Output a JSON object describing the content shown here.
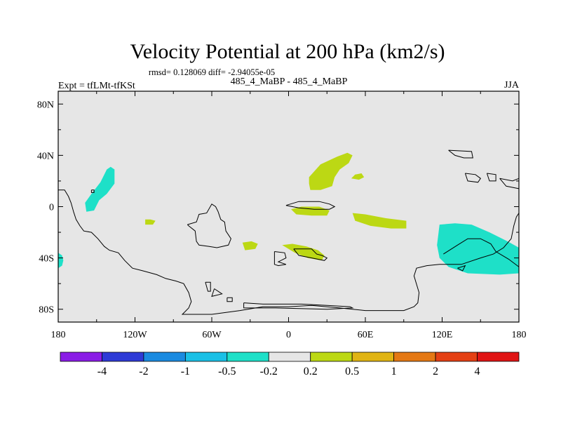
{
  "chart_data": {
    "type": "map",
    "title": "Velocity Potential at 200 hPa (km2/s)",
    "stats": "rmsd= 0.128069 diff= -2.94055e-05",
    "left_label": "Expt = tfLMt-tfKSt",
    "center_label": "485_4_MaBP - 485_4_MaBP",
    "right_label": "JJA",
    "x_ticks": [
      "180",
      "120W",
      "60W",
      "0",
      "60E",
      "120E",
      "180"
    ],
    "x_tick_values": [
      -180,
      -120,
      -60,
      0,
      60,
      120,
      180
    ],
    "y_ticks": [
      "80N",
      "40N",
      "0",
      "40S",
      "80S"
    ],
    "y_tick_values": [
      80,
      40,
      0,
      -40,
      -80
    ],
    "lon_range": [
      -180,
      180
    ],
    "lat_range": [
      -90,
      90
    ],
    "colorbar": {
      "labels": [
        "-4",
        "-2",
        "-1",
        "-0.5",
        "-0.2",
        "0.2",
        "0.5",
        "1",
        "2",
        "4"
      ],
      "colors": [
        "#8a1ce6",
        "#2e3ad6",
        "#1a8ae0",
        "#1ac0e6",
        "#1ee0c8",
        "#e6e6e6",
        "#bcd814",
        "#e0b414",
        "#e47814",
        "#e44014",
        "#e01414"
      ]
    },
    "background_color": "#e6e6e6",
    "regions": [
      {
        "name": "north-pacific-neg",
        "bin": "-0.5 to -0.2",
        "color": "#1ee0c8",
        "points": [
          [
            -142,
            29
          ],
          [
            -139,
            31
          ],
          [
            -136,
            29
          ],
          [
            -136,
            18
          ],
          [
            -142,
            10
          ],
          [
            -148,
            5
          ],
          [
            -152,
            -3
          ],
          [
            -158,
            -4
          ],
          [
            -159,
            3
          ],
          [
            -154,
            10
          ],
          [
            -147,
            19
          ]
        ]
      },
      {
        "name": "far-south-pacific-neg",
        "bin": "-0.5 to -0.2",
        "color": "#1ee0c8",
        "points": [
          [
            -180,
            -36
          ],
          [
            -177,
            -38
          ],
          [
            -176,
            -42
          ],
          [
            -177,
            -46
          ],
          [
            -180,
            -48
          ]
        ]
      },
      {
        "name": "south-west-pacific-neg",
        "bin": "-0.5 to -0.2",
        "color": "#1ee0c8",
        "points": [
          [
            118,
            -14
          ],
          [
            130,
            -13
          ],
          [
            143,
            -14
          ],
          [
            157,
            -20
          ],
          [
            171,
            -27
          ],
          [
            180,
            -32
          ],
          [
            180,
            -52
          ],
          [
            165,
            -53
          ],
          [
            140,
            -52
          ],
          [
            125,
            -47
          ],
          [
            118,
            -40
          ],
          [
            116,
            -30
          ]
        ]
      },
      {
        "name": "asia-pos",
        "bin": "0.2 to 0.5",
        "color": "#bcd814",
        "points": [
          [
            16,
            23
          ],
          [
            25,
            33
          ],
          [
            38,
            39
          ],
          [
            46,
            42
          ],
          [
            50,
            40
          ],
          [
            47,
            34
          ],
          [
            40,
            29
          ],
          [
            36,
            23
          ],
          [
            34,
            16
          ],
          [
            25,
            13
          ],
          [
            17,
            13
          ],
          [
            16,
            18
          ]
        ]
      },
      {
        "name": "east-asia-pos",
        "bin": "0.2 to 0.5",
        "color": "#bcd814",
        "points": [
          [
            49,
            22
          ],
          [
            52,
            25
          ],
          [
            57,
            26
          ],
          [
            59,
            23
          ],
          [
            55,
            21
          ]
        ]
      },
      {
        "name": "africa-pos",
        "bin": "0.2 to 0.5",
        "color": "#bcd814",
        "points": [
          [
            2,
            -2
          ],
          [
            10,
            0
          ],
          [
            24,
            0
          ],
          [
            32,
            -3
          ],
          [
            30,
            -7
          ],
          [
            18,
            -7
          ],
          [
            6,
            -6
          ]
        ]
      },
      {
        "name": "indian-ocean-pos",
        "bin": "0.2 to 0.5",
        "color": "#bcd814",
        "points": [
          [
            50,
            -5
          ],
          [
            60,
            -6
          ],
          [
            76,
            -9
          ],
          [
            92,
            -11
          ],
          [
            92,
            -17
          ],
          [
            80,
            -17
          ],
          [
            64,
            -15
          ],
          [
            52,
            -11
          ]
        ]
      },
      {
        "name": "south-atlantic-pos",
        "bin": "0.2 to 0.5",
        "color": "#bcd814",
        "points": [
          [
            -36,
            -28
          ],
          [
            -29,
            -27
          ],
          [
            -24,
            -29
          ],
          [
            -26,
            -33
          ],
          [
            -34,
            -34
          ]
        ]
      },
      {
        "name": "south-africa-pos",
        "bin": "0.2 to 0.5",
        "color": "#bcd814",
        "points": [
          [
            -5,
            -30
          ],
          [
            3,
            -29
          ],
          [
            14,
            -31
          ],
          [
            23,
            -34
          ],
          [
            28,
            -38
          ],
          [
            26,
            -42
          ],
          [
            15,
            -40
          ],
          [
            5,
            -36
          ]
        ]
      },
      {
        "name": "south-pacific-pos",
        "bin": "0.2 to 0.5",
        "color": "#bcd814",
        "points": [
          [
            -112,
            -10
          ],
          [
            -108,
            -10
          ],
          [
            -104,
            -11
          ],
          [
            -106,
            -14
          ],
          [
            -112,
            -14
          ]
        ]
      }
    ],
    "outlines": [
      [
        [
          -180,
          13
        ],
        [
          -175,
          13
        ],
        [
          -172,
          8
        ],
        [
          -170,
          3
        ],
        [
          -168,
          -4
        ],
        [
          -166,
          -10
        ],
        [
          -163,
          -15
        ],
        [
          -160,
          -19
        ],
        [
          -154,
          -20
        ],
        [
          -149,
          -25
        ],
        [
          -144,
          -31
        ],
        [
          -140,
          -34
        ],
        [
          -133,
          -36
        ],
        [
          -128,
          -42
        ],
        [
          -122,
          -48
        ],
        [
          -114,
          -50
        ],
        [
          -103,
          -53
        ],
        [
          -96,
          -56
        ],
        [
          -88,
          -58
        ],
        [
          -82,
          -60
        ],
        [
          -78,
          -67
        ],
        [
          -76,
          -74
        ],
        [
          -78,
          -79
        ],
        [
          -81,
          -82
        ],
        [
          -83,
          -84
        ],
        [
          -60,
          -84
        ],
        [
          -38,
          -81
        ],
        [
          -20,
          -78
        ],
        [
          0,
          -78
        ],
        [
          18,
          -77
        ],
        [
          40,
          -79
        ],
        [
          60,
          -81
        ],
        [
          90,
          -81
        ],
        [
          98,
          -78
        ],
        [
          101,
          -75
        ],
        [
          102,
          -67
        ],
        [
          98,
          -54
        ],
        [
          100,
          -48
        ],
        [
          108,
          -46
        ],
        [
          118,
          -45
        ],
        [
          135,
          -45
        ],
        [
          150,
          -40
        ],
        [
          160,
          -37
        ],
        [
          168,
          -32
        ],
        [
          174,
          -25
        ],
        [
          176,
          -15
        ],
        [
          178,
          -8
        ],
        [
          180,
          -5
        ]
      ],
      [
        [
          -154,
          13
        ],
        [
          -152,
          13
        ],
        [
          -152,
          11
        ],
        [
          -154,
          11
        ],
        [
          -154,
          13
        ]
      ],
      [
        [
          -79,
          -14
        ],
        [
          -72,
          -12
        ],
        [
          -70,
          -6
        ],
        [
          -64,
          -5
        ],
        [
          -60,
          2
        ],
        [
          -57,
          0
        ],
        [
          -55,
          -4
        ],
        [
          -53,
          -10
        ],
        [
          -50,
          -12
        ],
        [
          -49,
          -19
        ],
        [
          -45,
          -25
        ],
        [
          -47,
          -30
        ],
        [
          -56,
          -32
        ],
        [
          -62,
          -31
        ],
        [
          -70,
          -30
        ],
        [
          -72,
          -27
        ],
        [
          -73,
          -19
        ],
        [
          -78,
          -15
        ],
        [
          -79,
          -14
        ]
      ],
      [
        [
          -2,
          1
        ],
        [
          8,
          4
        ],
        [
          24,
          4
        ],
        [
          32,
          2
        ],
        [
          36,
          0
        ],
        [
          32,
          -2
        ],
        [
          20,
          -2
        ],
        [
          8,
          -1
        ],
        [
          -2,
          1
        ]
      ],
      [
        [
          -11,
          -35
        ],
        [
          -3,
          -36
        ],
        [
          -2,
          -40
        ],
        [
          -8,
          -43
        ],
        [
          -2,
          -45
        ],
        [
          -8,
          -46
        ],
        [
          -11,
          -45
        ],
        [
          -11,
          -35
        ]
      ],
      [
        [
          4,
          -33
        ],
        [
          18,
          -33
        ],
        [
          22,
          -37
        ],
        [
          26,
          -38
        ],
        [
          30,
          -40
        ],
        [
          28,
          -42
        ],
        [
          18,
          -40
        ],
        [
          8,
          -38
        ],
        [
          4,
          -33
        ]
      ],
      [
        [
          -65,
          -59
        ],
        [
          -61,
          -59
        ],
        [
          -61,
          -66
        ],
        [
          -63,
          -66
        ],
        [
          -65,
          -59
        ]
      ],
      [
        [
          -58,
          -64
        ],
        [
          -52,
          -68
        ],
        [
          -60,
          -70
        ],
        [
          -58,
          -64
        ]
      ],
      [
        [
          -48,
          -71
        ],
        [
          -44,
          -71
        ],
        [
          -44,
          -74
        ],
        [
          -48,
          -74
        ],
        [
          -48,
          -71
        ]
      ],
      [
        [
          -35,
          -75
        ],
        [
          -20,
          -76
        ],
        [
          -5,
          -76
        ],
        [
          10,
          -76
        ],
        [
          30,
          -77
        ],
        [
          48,
          -78
        ],
        [
          50,
          -79
        ],
        [
          30,
          -80
        ],
        [
          -10,
          -79
        ],
        [
          -35,
          -79
        ],
        [
          -35,
          -75
        ]
      ],
      [
        [
          125,
          44
        ],
        [
          143,
          43
        ],
        [
          144,
          38
        ],
        [
          137,
          38
        ],
        [
          130,
          40
        ],
        [
          125,
          44
        ]
      ],
      [
        [
          138,
          26
        ],
        [
          146,
          25
        ],
        [
          150,
          22
        ],
        [
          148,
          19
        ],
        [
          140,
          20
        ],
        [
          138,
          26
        ]
      ],
      [
        [
          155,
          26
        ],
        [
          162,
          25
        ],
        [
          162,
          20
        ],
        [
          157,
          20
        ],
        [
          155,
          26
        ]
      ],
      [
        [
          165,
          22
        ],
        [
          175,
          20
        ],
        [
          180,
          22
        ],
        [
          180,
          14
        ],
        [
          170,
          16
        ],
        [
          165,
          22
        ]
      ],
      [
        [
          121,
          -37
        ],
        [
          132,
          -30
        ],
        [
          140,
          -25
        ],
        [
          150,
          -25
        ],
        [
          158,
          -29
        ],
        [
          162,
          -35
        ],
        [
          172,
          -41
        ],
        [
          180,
          -47
        ]
      ],
      [
        [
          132,
          -48
        ],
        [
          138,
          -46
        ],
        [
          136,
          -50
        ],
        [
          132,
          -48
        ]
      ]
    ]
  }
}
